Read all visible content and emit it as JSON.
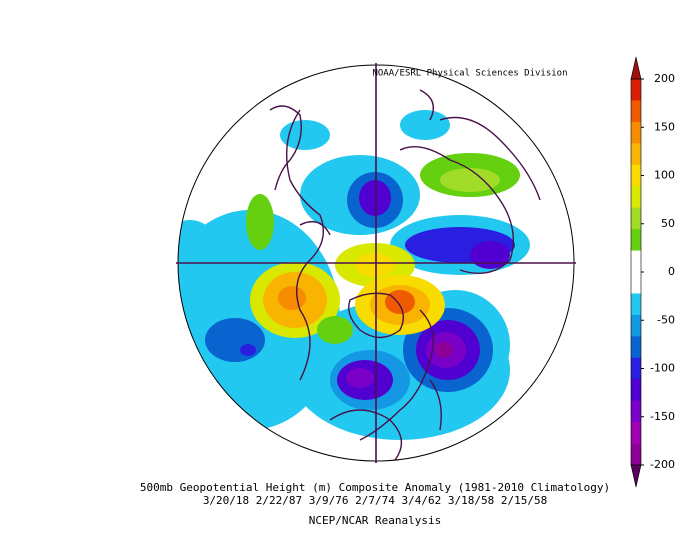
{
  "credit": "NOAA/ESRL Physical Sciences Division",
  "caption": {
    "line1": "500mb Geopotential Height (m) Composite Anomaly (1981-2010 Climatology)",
    "line2": "3/20/18 2/22/87 3/9/76 2/7/74 3/4/62 3/18/58 2/15/58",
    "line3": "NCEP/NCAR Reanalysis"
  },
  "colorbar": {
    "ticks": [
      200,
      150,
      100,
      50,
      0,
      -50,
      -100,
      -150,
      -200
    ],
    "colors": [
      "#d81e05",
      "#f05a00",
      "#f88c00",
      "#f8b400",
      "#f8dc00",
      "#d8e800",
      "#a0dc28",
      "#64d010",
      "#ffffff",
      "#ffffff",
      "#22c8f0",
      "#1498e4",
      "#0a64d0",
      "#2a1ee0",
      "#5000d0",
      "#7a00c8",
      "#a000b4",
      "#8c0098"
    ],
    "over_color": "#a01010",
    "under_color": "#5a0060"
  }
}
